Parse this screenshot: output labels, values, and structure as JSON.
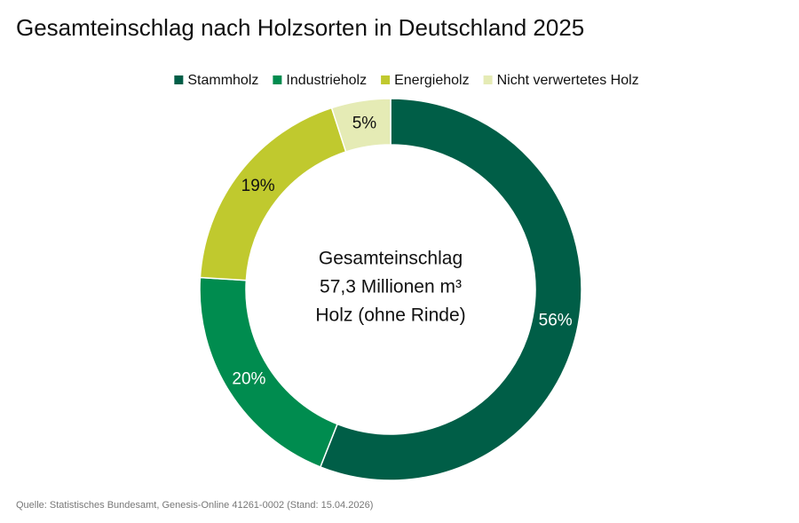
{
  "chart_data": {
    "type": "pie",
    "title": "Gesamteinschlag nach Holzsorten in Deutschland 2025",
    "categories": [
      "Stammholz",
      "Industrieholz",
      "Energieholz",
      "Nicht verwertetes Holz"
    ],
    "values": [
      56,
      20,
      19,
      5
    ],
    "value_labels": [
      "56%",
      "20%",
      "19%",
      "5%"
    ],
    "colors": [
      "#005e47",
      "#008c4f",
      "#c0c92e",
      "#e5ebb5"
    ],
    "center_text": [
      "Gesamteinschlag",
      "57,3 Millionen m³",
      "Holz (ohne Rinde)"
    ],
    "source": "Quelle: Statistisches Bundesamt, Genesis-Online 41261-0002 (Stand: 15.04.2026)",
    "legend": "top"
  }
}
